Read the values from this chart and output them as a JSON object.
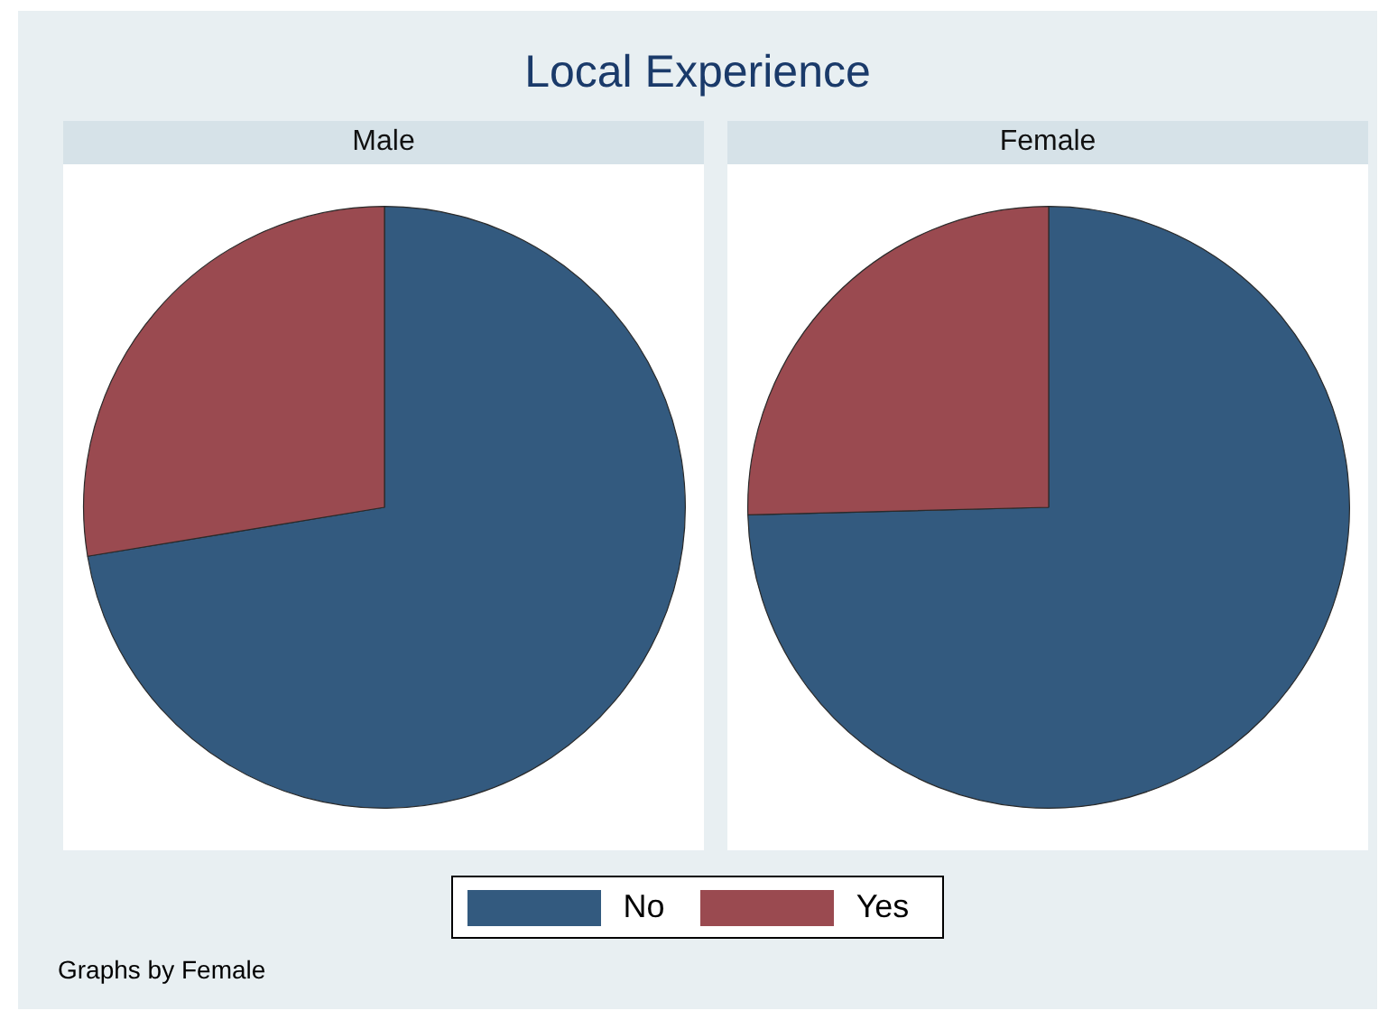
{
  "chart_data": {
    "type": "pie",
    "title": "Local Experience",
    "categories": [
      "No",
      "Yes"
    ],
    "colors": [
      "#335a7f",
      "#9a4a50"
    ],
    "legend": "bottom",
    "series": [
      {
        "name": "Male",
        "values": [
          72.4,
          27.6
        ]
      },
      {
        "name": "Female",
        "values": [
          74.6,
          25.4
        ]
      }
    ],
    "annotations": [
      "Graphs by Female"
    ]
  }
}
